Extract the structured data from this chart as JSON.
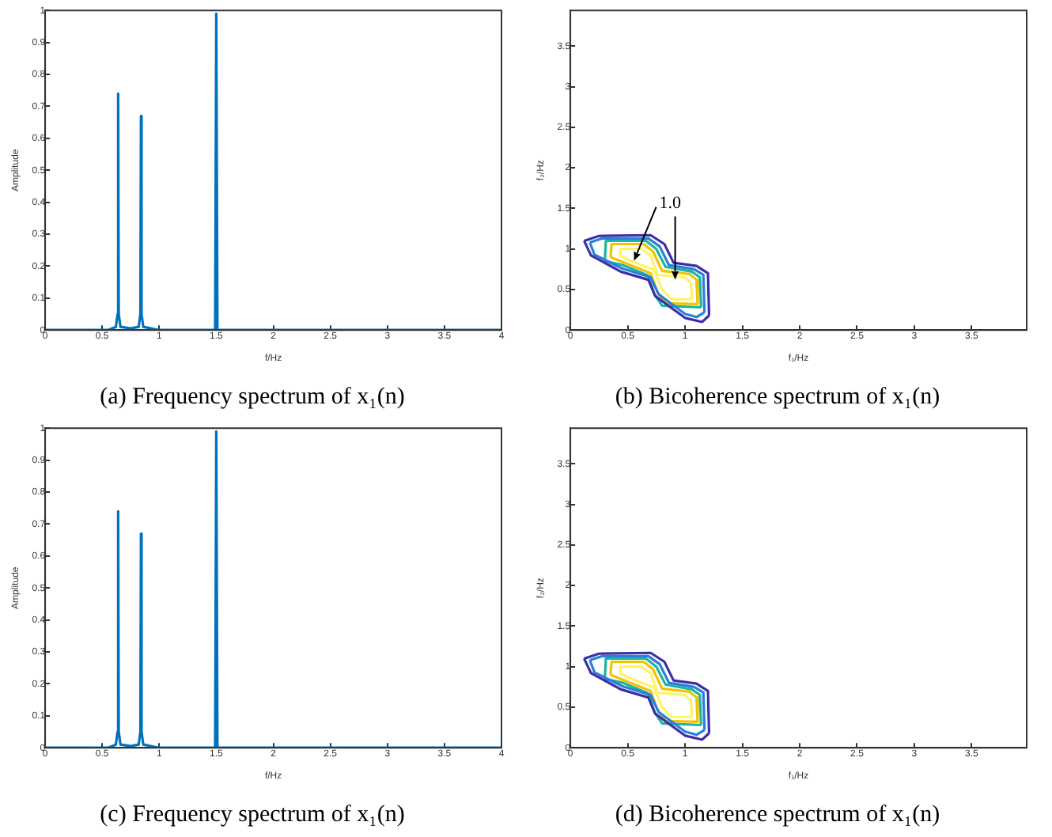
{
  "chart_data": [
    {
      "type": "line",
      "title": "(a) Frequency spectrum of x₁(n)",
      "xlabel": "f/Hz",
      "ylabel": "Amplitude",
      "xlim": [
        0,
        4
      ],
      "ylim": [
        0,
        1
      ],
      "xticks": [
        0,
        0.5,
        1,
        1.5,
        2,
        2.5,
        3,
        3.5,
        4
      ],
      "yticks": [
        0,
        0.1,
        0.2,
        0.3,
        0.4,
        0.5,
        0.6,
        0.7,
        0.8,
        0.9,
        1
      ],
      "grid": false,
      "legend": false,
      "marker": "none",
      "line_style": "solid",
      "series": [
        {
          "color": "#0072bd",
          "x": [
            0,
            0.55,
            0.62,
            0.635,
            0.64,
            0.645,
            0.66,
            0.75,
            0.82,
            0.835,
            0.84,
            0.845,
            0.86,
            1,
            1.49,
            1.5,
            1.51,
            2,
            4
          ],
          "values": [
            0,
            0,
            0.01,
            0.05,
            0.74,
            0.05,
            0.01,
            0.005,
            0.01,
            0.05,
            0.67,
            0.05,
            0.01,
            0,
            0,
            0.99,
            0,
            0,
            0
          ]
        }
      ]
    },
    {
      "type": "line",
      "title": "(b) Bicoherence spectrum of x₁(n)",
      "xlabel": "f₁/Hz",
      "ylabel": "f₂/Hz",
      "xlim": [
        0,
        3.98
      ],
      "ylim": [
        0,
        3.94
      ],
      "xticks": [
        0,
        0.5,
        1,
        1.5,
        2,
        2.5,
        3,
        3.5
      ],
      "yticks": [
        0,
        0.5,
        1,
        1.5,
        2,
        2.5,
        3,
        3.5
      ],
      "grid": false,
      "legend": false,
      "marker": "none",
      "line_style": "solid",
      "annotations": [
        "1.0"
      ],
      "series": [
        {
          "color": "#3b2fa8",
          "x": [
            0.12,
            0.25,
            0.7,
            0.82,
            0.9,
            1.1,
            1.2,
            1.21
          ],
          "values": [
            1.1,
            1.16,
            1.17,
            1.06,
            0.83,
            0.79,
            0.7,
            0.18
          ]
        },
        {
          "color": "#3b2fa8",
          "x": [
            0.12,
            0.18,
            0.44,
            0.68,
            0.74,
            1,
            1.15,
            1.21
          ],
          "values": [
            1.1,
            0.92,
            0.72,
            0.62,
            0.42,
            0.15,
            0.1,
            0.18
          ]
        },
        {
          "color": "#2a7fd8",
          "x": [
            0.17,
            0.28,
            0.68,
            0.78,
            0.86,
            1.08,
            1.16,
            1.17
          ],
          "values": [
            1.08,
            1.13,
            1.13,
            1.03,
            0.8,
            0.75,
            0.68,
            0.22
          ]
        },
        {
          "color": "#2a7fd8",
          "x": [
            0.17,
            0.21,
            0.45,
            0.7,
            0.77,
            1,
            1.1,
            1.17
          ],
          "values": [
            1.08,
            0.93,
            0.76,
            0.65,
            0.44,
            0.2,
            0.16,
            0.22
          ]
        },
        {
          "color": "#1bb5a0",
          "x": [
            0.3,
            0.31,
            0.66,
            0.75,
            0.83,
            1.06,
            1.13,
            1.14
          ],
          "values": [
            0.85,
            1.1,
            1.1,
            1,
            0.78,
            0.72,
            0.65,
            0.28
          ]
        },
        {
          "color": "#1bb5a0",
          "x": [
            0.3,
            0.46,
            0.68,
            0.73,
            0.8,
            1.14
          ],
          "values": [
            0.85,
            0.8,
            0.67,
            0.45,
            0.3,
            0.28
          ]
        },
        {
          "color": "#f2c400",
          "x": [
            0.35,
            0.36,
            0.64,
            0.72,
            0.8,
            1.04,
            1.1,
            1.11
          ],
          "values": [
            0.9,
            1.06,
            1.06,
            0.97,
            0.73,
            0.69,
            0.62,
            0.32
          ]
        },
        {
          "color": "#f2c400",
          "x": [
            0.35,
            0.47,
            0.7,
            0.76,
            0.83,
            1.11
          ],
          "values": [
            0.9,
            0.83,
            0.7,
            0.47,
            0.33,
            0.32
          ]
        },
        {
          "color": "#fff36a",
          "x": [
            0.43,
            0.44,
            0.62,
            0.7,
            0.76,
            1,
            1.05,
            1.06
          ],
          "values": [
            0.92,
            1,
            1,
            0.92,
            0.68,
            0.65,
            0.58,
            0.38
          ]
        },
        {
          "color": "#fff36a",
          "x": [
            0.43,
            0.5,
            0.73,
            0.8,
            0.88,
            1.06
          ],
          "values": [
            0.92,
            0.87,
            0.74,
            0.5,
            0.38,
            0.38
          ]
        }
      ]
    },
    {
      "type": "line",
      "title": "(c) Frequency spectrum of x₁(n)",
      "xlabel": "f/Hz",
      "ylabel": "Amplitude",
      "xlim": [
        0,
        4
      ],
      "ylim": [
        0,
        1
      ],
      "xticks": [
        0,
        0.5,
        1,
        1.5,
        2,
        2.5,
        3,
        3.5,
        4
      ],
      "yticks": [
        0,
        0.1,
        0.2,
        0.3,
        0.4,
        0.5,
        0.6,
        0.7,
        0.8,
        0.9,
        1
      ],
      "grid": false,
      "legend": false,
      "marker": "none",
      "line_style": "solid",
      "series": [
        {
          "color": "#0072bd",
          "x": [
            0,
            0.55,
            0.62,
            0.635,
            0.64,
            0.645,
            0.66,
            0.75,
            0.82,
            0.835,
            0.84,
            0.845,
            0.86,
            1,
            1.49,
            1.5,
            1.51,
            2,
            4
          ],
          "values": [
            0,
            0,
            0.01,
            0.05,
            0.74,
            0.05,
            0.01,
            0.005,
            0.01,
            0.05,
            0.67,
            0.05,
            0.01,
            0,
            0,
            0.99,
            0,
            0,
            0
          ]
        }
      ]
    },
    {
      "type": "line",
      "title": "(d) Bicoherence spectrum of x₁(n)",
      "xlabel": "f₁/Hz",
      "ylabel": "f₂/Hz",
      "xlim": [
        0,
        3.98
      ],
      "ylim": [
        0,
        3.94
      ],
      "xticks": [
        0,
        0.5,
        1,
        1.5,
        2,
        2.5,
        3,
        3.5
      ],
      "yticks": [
        0,
        0.5,
        1,
        1.5,
        2,
        2.5,
        3,
        3.5
      ],
      "grid": false,
      "legend": false,
      "marker": "none",
      "line_style": "solid",
      "series": [
        {
          "color": "#3b2fa8",
          "x": [
            0.12,
            0.25,
            0.7,
            0.82,
            0.9,
            1.1,
            1.2,
            1.21
          ],
          "values": [
            1.1,
            1.16,
            1.17,
            1.06,
            0.83,
            0.79,
            0.7,
            0.18
          ]
        },
        {
          "color": "#3b2fa8",
          "x": [
            0.12,
            0.18,
            0.44,
            0.68,
            0.74,
            1,
            1.15,
            1.21
          ],
          "values": [
            1.1,
            0.92,
            0.72,
            0.62,
            0.42,
            0.15,
            0.1,
            0.18
          ]
        },
        {
          "color": "#2a7fd8",
          "x": [
            0.17,
            0.28,
            0.68,
            0.78,
            0.86,
            1.08,
            1.16,
            1.17
          ],
          "values": [
            1.08,
            1.13,
            1.13,
            1.03,
            0.8,
            0.75,
            0.68,
            0.22
          ]
        },
        {
          "color": "#2a7fd8",
          "x": [
            0.17,
            0.21,
            0.45,
            0.7,
            0.77,
            1,
            1.1,
            1.17
          ],
          "values": [
            1.08,
            0.93,
            0.76,
            0.65,
            0.44,
            0.2,
            0.16,
            0.22
          ]
        },
        {
          "color": "#1bb5a0",
          "x": [
            0.3,
            0.31,
            0.66,
            0.75,
            0.83,
            1.06,
            1.13,
            1.14
          ],
          "values": [
            0.85,
            1.1,
            1.1,
            1,
            0.78,
            0.72,
            0.65,
            0.28
          ]
        },
        {
          "color": "#1bb5a0",
          "x": [
            0.3,
            0.46,
            0.68,
            0.73,
            0.8,
            1.14
          ],
          "values": [
            0.85,
            0.8,
            0.67,
            0.45,
            0.3,
            0.28
          ]
        },
        {
          "color": "#f2c400",
          "x": [
            0.35,
            0.36,
            0.64,
            0.72,
            0.8,
            1.04,
            1.1,
            1.11
          ],
          "values": [
            0.9,
            1.06,
            1.06,
            0.97,
            0.73,
            0.69,
            0.62,
            0.32
          ]
        },
        {
          "color": "#f2c400",
          "x": [
            0.35,
            0.47,
            0.7,
            0.76,
            0.83,
            1.11
          ],
          "values": [
            0.9,
            0.83,
            0.7,
            0.47,
            0.33,
            0.32
          ]
        },
        {
          "color": "#fff36a",
          "x": [
            0.43,
            0.44,
            0.62,
            0.7,
            0.76,
            1,
            1.05,
            1.06
          ],
          "values": [
            0.92,
            1,
            1,
            0.92,
            0.68,
            0.65,
            0.58,
            0.38
          ]
        },
        {
          "color": "#fff36a",
          "x": [
            0.43,
            0.5,
            0.73,
            0.8,
            0.88,
            1.06
          ],
          "values": [
            0.92,
            0.87,
            0.74,
            0.5,
            0.38,
            0.38
          ]
        }
      ]
    }
  ]
}
